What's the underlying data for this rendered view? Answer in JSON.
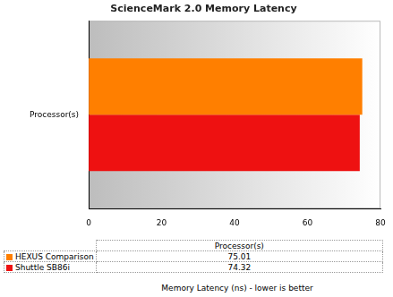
{
  "chart_data": {
    "type": "bar",
    "title": "ScienceMark 2.0 Memory Latency",
    "orientation": "horizontal",
    "categories": [
      "Processor(s)"
    ],
    "series": [
      {
        "name": "HEXUS Comparison",
        "color": "#ff7f00",
        "values": [
          75.01
        ]
      },
      {
        "name": "Shuttle SB86i",
        "color": "#ee1111",
        "values": [
          74.32
        ]
      }
    ],
    "x_label": "Memory Latency (ns) - lower is better",
    "xlim": [
      0,
      80
    ],
    "xticks": [
      0,
      20,
      40,
      60,
      80
    ],
    "grid": false,
    "legend": "bottom"
  }
}
